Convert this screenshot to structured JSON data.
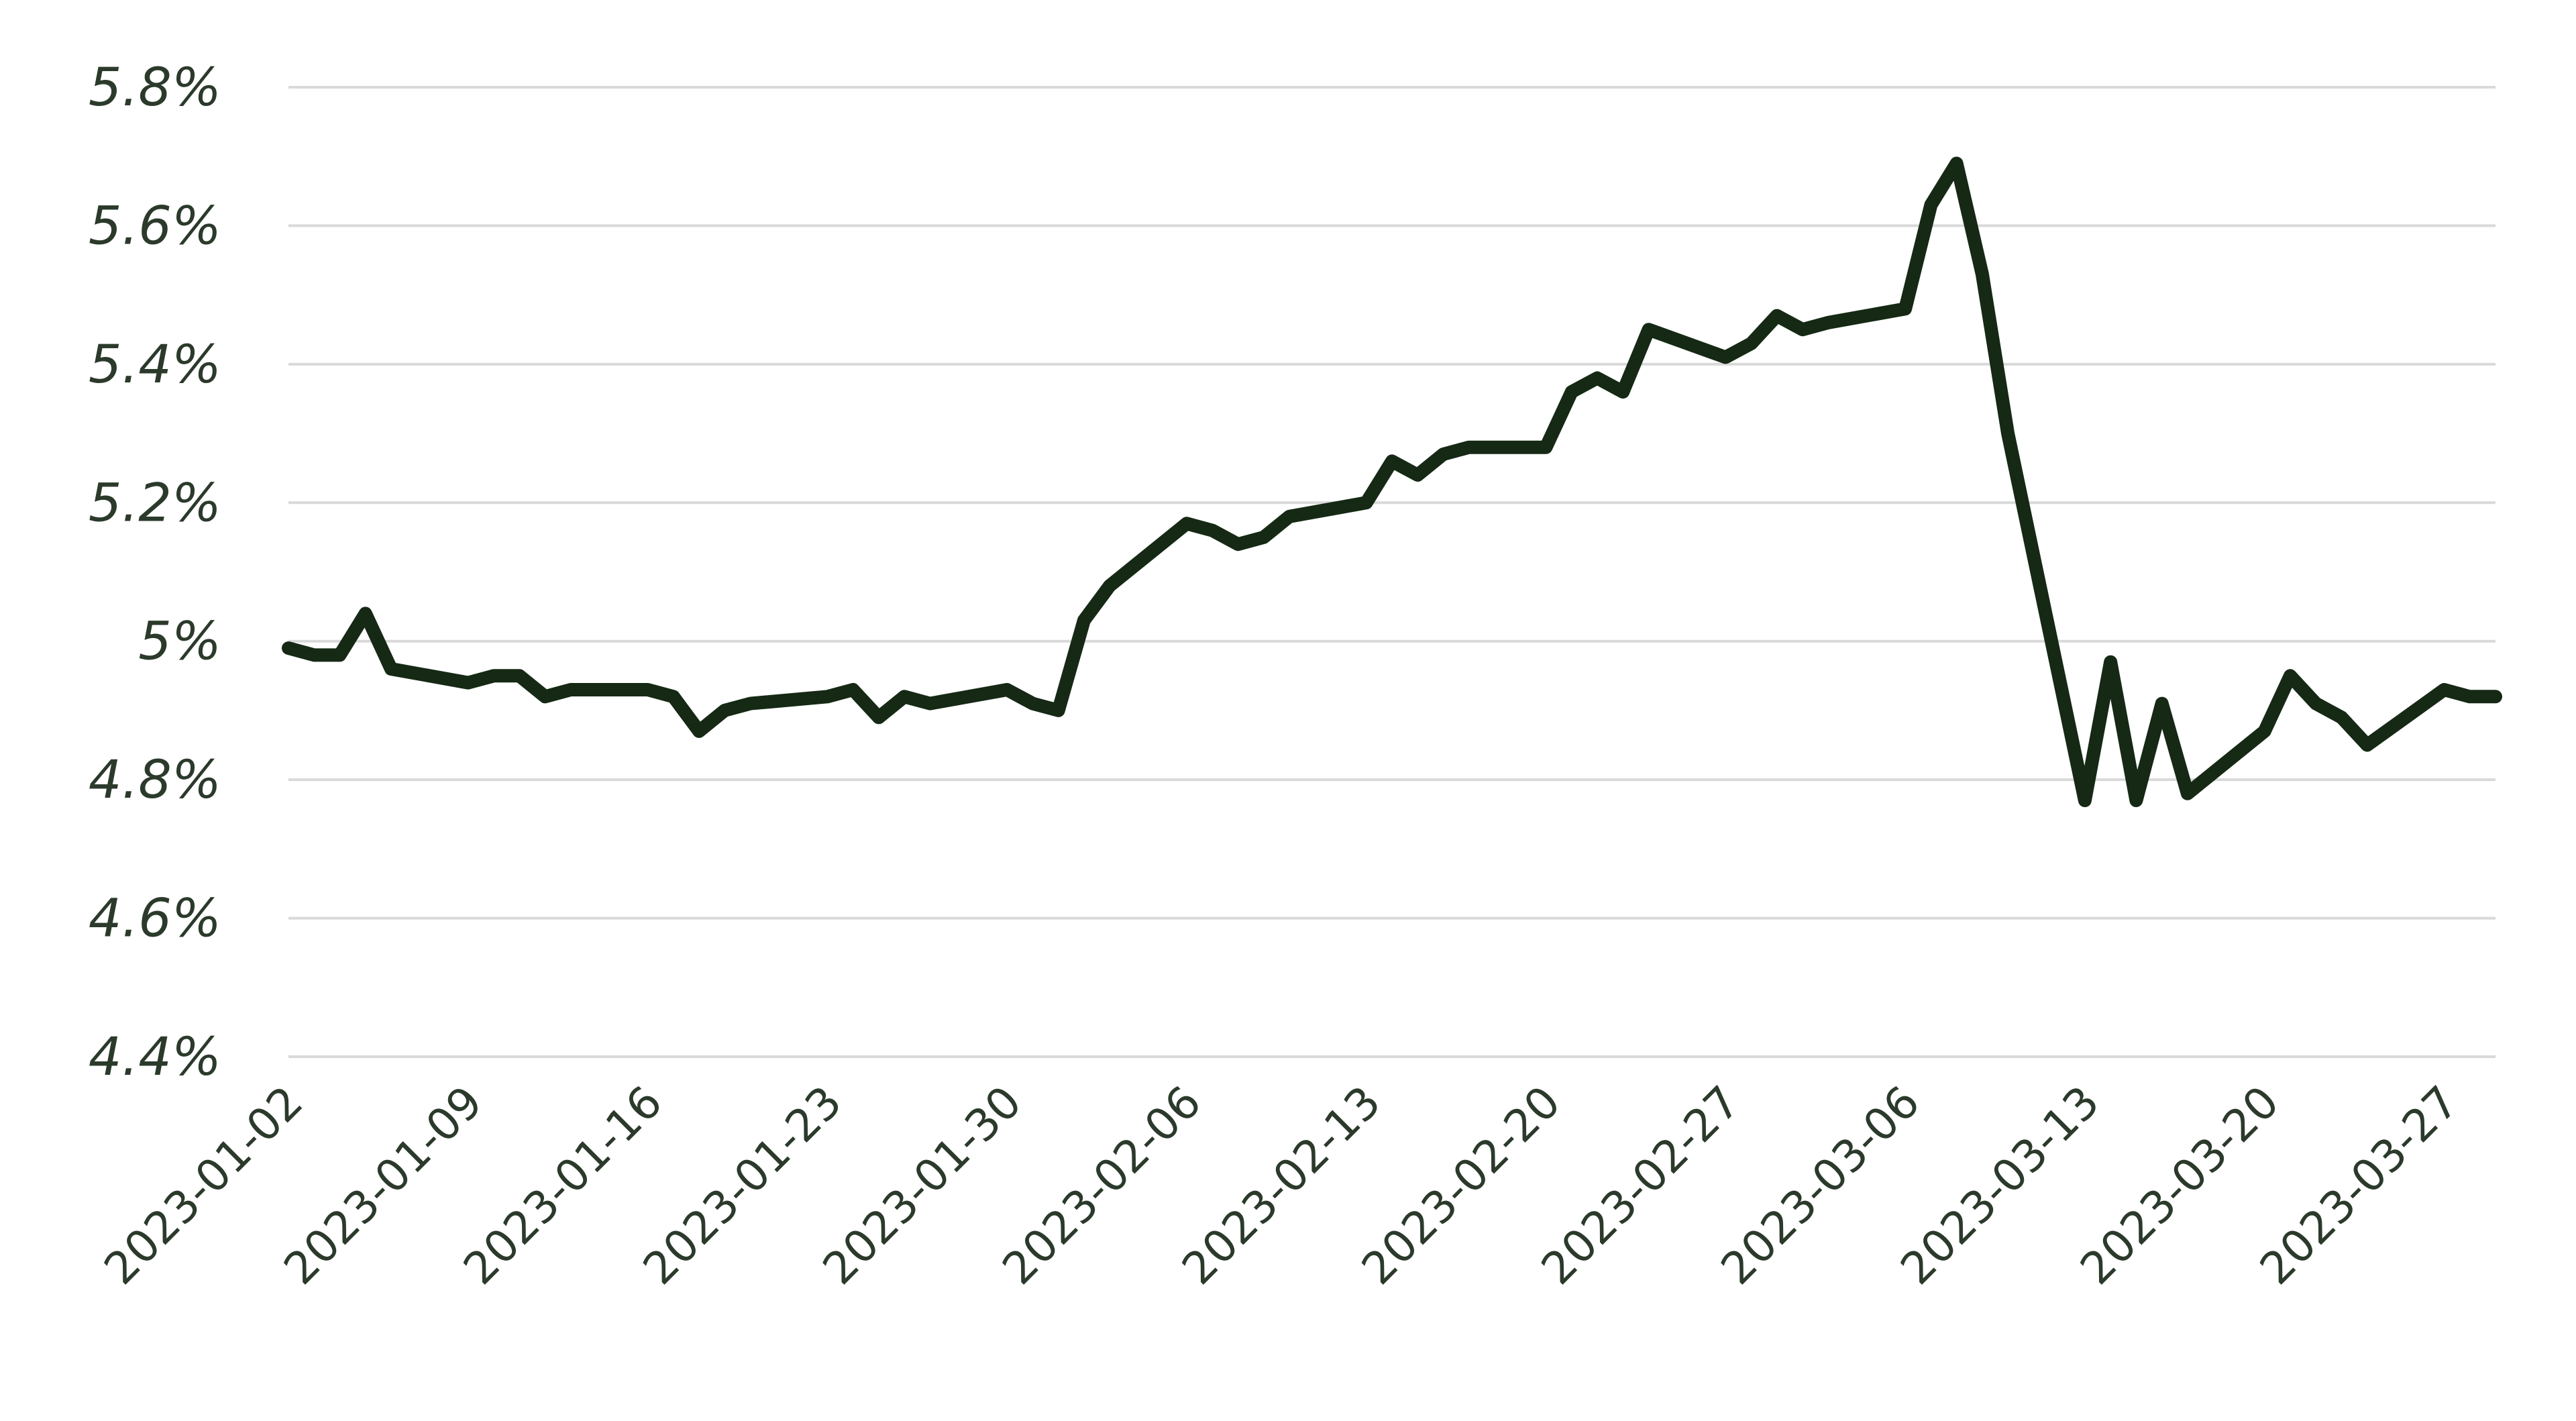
{
  "colors": {
    "line": "#152915",
    "grid": "#d9d9d9",
    "text": "#2b3a2b"
  },
  "chart_data": {
    "type": "line",
    "title": "",
    "xlabel": "",
    "ylabel": "",
    "grid": true,
    "legend": "none",
    "ylim": [
      4.4,
      5.8
    ],
    "yticks": [
      4.4,
      4.6,
      4.8,
      5.0,
      5.2,
      5.4,
      5.6,
      5.8
    ],
    "ytick_labels": [
      "4.4%",
      "4.6%",
      "4.8%",
      "5%",
      "5.2%",
      "5.4%",
      "5.6%",
      "5.8%"
    ],
    "xlim": [
      "2023-01-02",
      "2023-03-29"
    ],
    "xticks": [
      "2023-01-02",
      "2023-01-09",
      "2023-01-16",
      "2023-01-23",
      "2023-01-30",
      "2023-02-06",
      "2023-02-13",
      "2023-02-20",
      "2023-02-27",
      "2023-03-06",
      "2023-03-13",
      "2023-03-20",
      "2023-03-27"
    ],
    "series": [
      {
        "x": [
          "2023-01-02",
          "2023-01-03",
          "2023-01-04",
          "2023-01-05",
          "2023-01-06",
          "2023-01-09",
          "2023-01-10",
          "2023-01-11",
          "2023-01-12",
          "2023-01-13",
          "2023-01-16",
          "2023-01-17",
          "2023-01-18",
          "2023-01-19",
          "2023-01-20",
          "2023-01-23",
          "2023-01-24",
          "2023-01-25",
          "2023-01-26",
          "2023-01-27",
          "2023-01-30",
          "2023-01-31",
          "2023-02-01",
          "2023-02-02",
          "2023-02-03",
          "2023-02-06",
          "2023-02-07",
          "2023-02-08",
          "2023-02-09",
          "2023-02-10",
          "2023-02-13",
          "2023-02-14",
          "2023-02-15",
          "2023-02-16",
          "2023-02-17",
          "2023-02-20",
          "2023-02-21",
          "2023-02-22",
          "2023-02-23",
          "2023-02-24",
          "2023-02-27",
          "2023-02-28",
          "2023-03-01",
          "2023-03-02",
          "2023-03-03",
          "2023-03-06",
          "2023-03-07",
          "2023-03-08",
          "2023-03-09",
          "2023-03-10",
          "2023-03-13",
          "2023-03-14",
          "2023-03-15",
          "2023-03-16",
          "2023-03-17",
          "2023-03-20",
          "2023-03-21",
          "2023-03-22",
          "2023-03-23",
          "2023-03-24",
          "2023-03-27",
          "2023-03-28",
          "2023-03-29"
        ],
        "y": [
          4.99,
          4.98,
          4.98,
          5.04,
          4.96,
          4.94,
          4.95,
          4.95,
          4.92,
          4.93,
          4.93,
          4.92,
          4.87,
          4.9,
          4.91,
          4.92,
          4.93,
          4.89,
          4.92,
          4.91,
          4.93,
          4.91,
          4.9,
          5.03,
          5.08,
          5.17,
          5.16,
          5.14,
          5.15,
          5.18,
          5.2,
          5.26,
          5.24,
          5.27,
          5.28,
          5.28,
          5.36,
          5.38,
          5.36,
          5.45,
          5.41,
          5.43,
          5.47,
          5.45,
          5.46,
          5.48,
          5.63,
          5.69,
          5.53,
          5.3,
          4.77,
          4.97,
          4.77,
          4.91,
          4.78,
          4.87,
          4.95,
          4.91,
          4.89,
          4.85,
          4.93,
          4.92,
          4.92
        ]
      }
    ]
  }
}
